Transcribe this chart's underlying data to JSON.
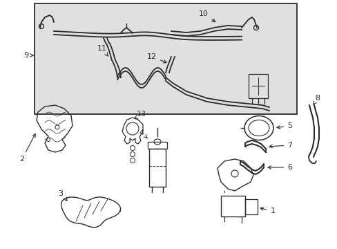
{
  "bg_color": "#ffffff",
  "line_color": "#2a2a2a",
  "box_bg": "#e0e0e0",
  "fig_width": 4.89,
  "fig_height": 3.6,
  "dpi": 100
}
